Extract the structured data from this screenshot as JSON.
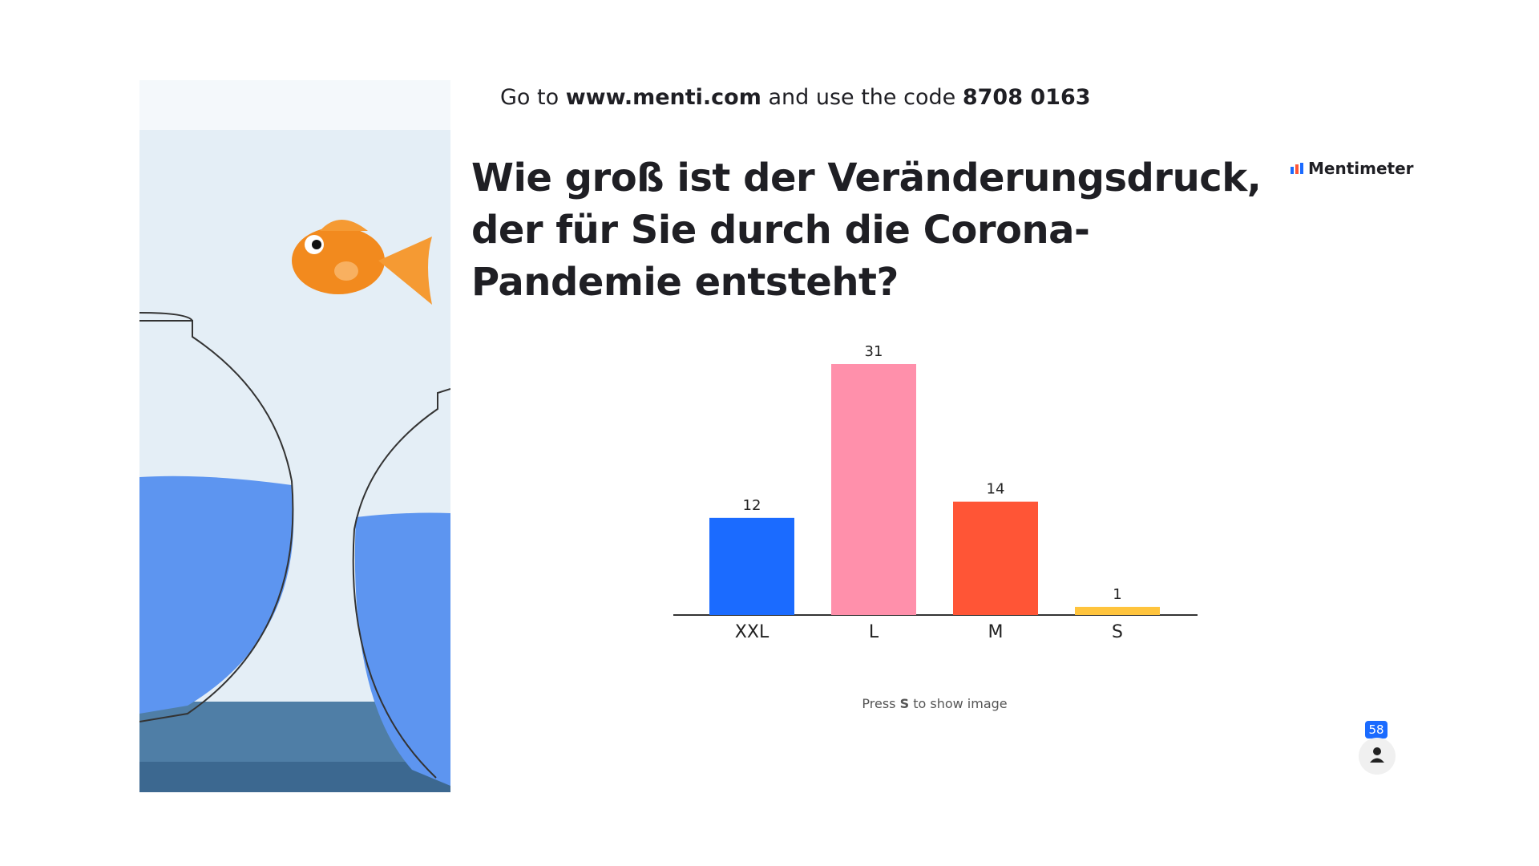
{
  "header": {
    "lead": "Go to",
    "url": "www.menti.com",
    "middle": "and use the code",
    "code": "8708 0163"
  },
  "question": "Wie groß ist der Veränderungsdruck, der für Sie durch die Corona-Pandemie entsteht?",
  "brand": "Mentimeter",
  "hint": {
    "lead": "Press",
    "key": "S",
    "rest": "to show image"
  },
  "participants": 58,
  "chart_data": {
    "type": "bar",
    "categories": [
      "XXL",
      "L",
      "M",
      "S"
    ],
    "values": [
      12,
      31,
      14,
      1
    ],
    "colors": [
      "#1b6bff",
      "#ff90ab",
      "#ff5536",
      "#ffc43d"
    ]
  }
}
